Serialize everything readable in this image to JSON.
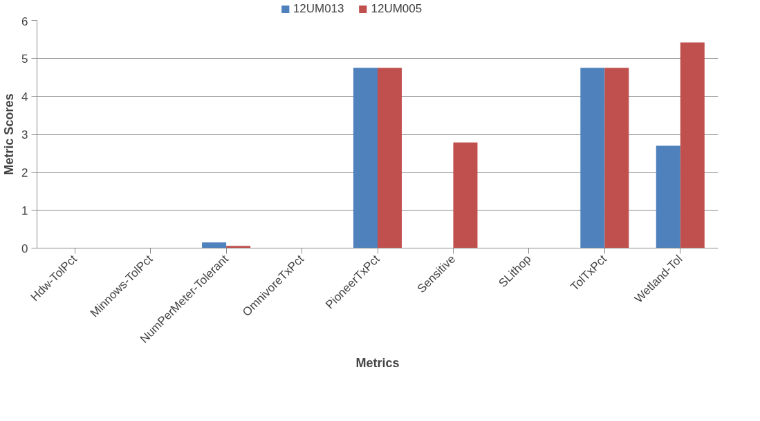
{
  "chart_data": {
    "type": "bar",
    "xlabel": "Metrics",
    "ylabel": "Metric Scores",
    "categories": [
      "Hdw-TolPct",
      "Minnows-TolPct",
      "NumPerMeter-Tolerant",
      "OmnivoreTxPct",
      "PioneerTxPct",
      "Sensitive",
      "SLithop",
      "TolTxPct",
      "Wetland-Tol"
    ],
    "series": [
      {
        "name": "12UM013",
        "color": "#4f81bd",
        "values": [
          0,
          0,
          0.15,
          0,
          4.75,
          0,
          0,
          4.75,
          2.7
        ]
      },
      {
        "name": "12UM005",
        "color": "#c0504d",
        "values": [
          0,
          0,
          0.06,
          0,
          4.75,
          2.78,
          0,
          4.75,
          5.42
        ]
      }
    ],
    "ylim": [
      0,
      6
    ],
    "yticks": [
      0,
      1,
      2,
      3,
      4,
      5,
      6
    ],
    "grid": "y",
    "legend": "top"
  }
}
